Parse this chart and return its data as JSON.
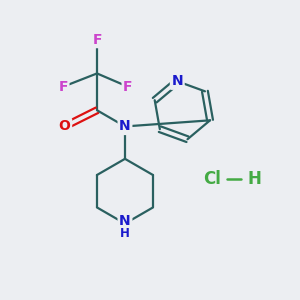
{
  "bg_color": "#eceef2",
  "bond_color": "#2a6060",
  "bond_lw": 1.6,
  "atom_colors": {
    "N": "#1a1acc",
    "O": "#dd1111",
    "F": "#cc44cc",
    "Cl": "#44aa44",
    "H_pip": "#44aa44",
    "C": "#2a6060"
  },
  "font_size_atom": 10,
  "font_size_small": 8.5,
  "font_size_hcl": 12
}
